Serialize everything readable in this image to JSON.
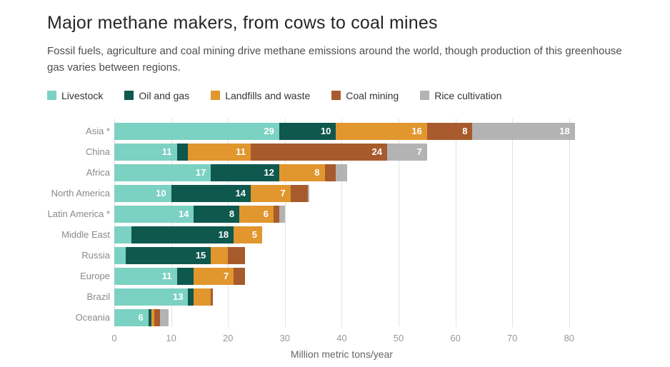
{
  "header": {
    "title": "Major methane makers, from cows to coal mines",
    "subtitle": "Fossil fuels, agriculture and coal mining drive methane emissions around the world, though production of this greenhouse gas varies between regions."
  },
  "legend": [
    {
      "label": "Livestock",
      "color": "#7bd1c2"
    },
    {
      "label": "Oil and gas",
      "color": "#0e584e"
    },
    {
      "label": "Landfills and waste",
      "color": "#e1962e"
    },
    {
      "label": "Coal mining",
      "color": "#a75b2d"
    },
    {
      "label": "Rice cultivation",
      "color": "#b3b3b3"
    }
  ],
  "chart_data": {
    "type": "bar",
    "stacked": true,
    "orientation": "horizontal",
    "title": "Major methane makers, from cows to coal mines",
    "xlabel": "Million metric tons/year",
    "categories": [
      "Asia *",
      "China",
      "Africa",
      "North America",
      "Latin America *",
      "Middle East",
      "Russia",
      "Europe",
      "Brazil",
      "Oceania"
    ],
    "series": [
      {
        "name": "Livestock",
        "color": "#7bd1c2",
        "values": [
          29,
          11,
          17,
          10,
          14,
          3,
          2,
          11,
          13,
          6
        ]
      },
      {
        "name": "Oil and gas",
        "color": "#0e584e",
        "values": [
          10,
          2,
          12,
          14,
          8,
          18,
          15,
          3,
          1,
          0.5
        ]
      },
      {
        "name": "Landfills and waste",
        "color": "#e1962e",
        "values": [
          16,
          11,
          8,
          7,
          6,
          5,
          3,
          7,
          3,
          0.5
        ]
      },
      {
        "name": "Coal mining",
        "color": "#a75b2d",
        "values": [
          8,
          24,
          2,
          3,
          1,
          0,
          3,
          2,
          0.3,
          1
        ]
      },
      {
        "name": "Rice cultivation",
        "color": "#b3b3b3",
        "values": [
          18,
          7,
          2,
          0.3,
          1,
          0,
          0,
          0,
          0,
          1.5
        ]
      }
    ],
    "x_ticks": [
      0,
      10,
      20,
      30,
      40,
      50,
      60,
      70,
      80
    ],
    "xlim": [
      0,
      97
    ],
    "grid": "vertical",
    "legend_position": "top",
    "label_min_value": 5
  }
}
